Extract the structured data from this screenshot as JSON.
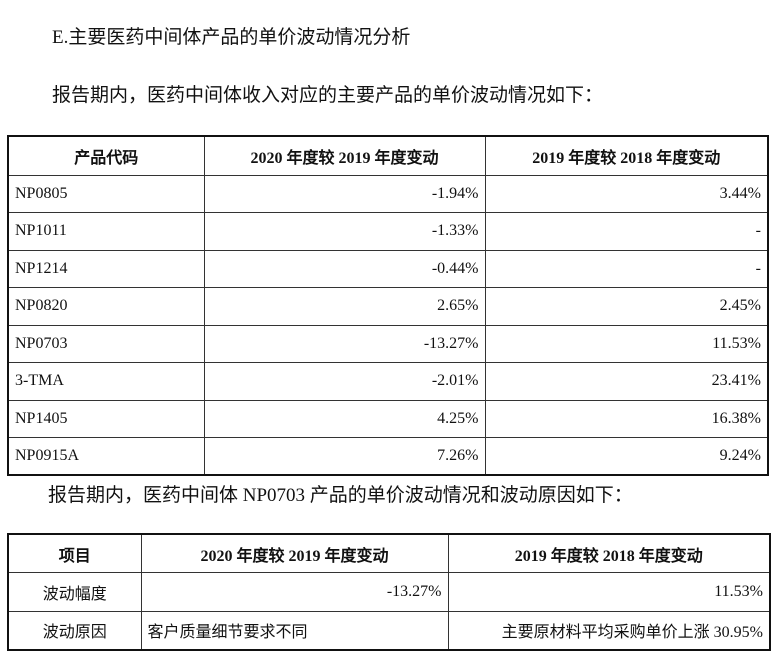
{
  "heading": "E.主要医药中间体产品的单价波动情况分析",
  "intro": "报告期内，医药中间体收入对应的主要产品的单价波动情况如下：",
  "table1": {
    "header": [
      "产品代码",
      "2020 年度较 2019 年度变动",
      "2019 年度较 2018 年度变动"
    ],
    "rows": [
      [
        "NP0805",
        "-1.94%",
        "3.44%"
      ],
      [
        "NP1011",
        "-1.33%",
        "-"
      ],
      [
        "NP1214",
        "-0.44%",
        "-"
      ],
      [
        "NP0820",
        "2.65%",
        "2.45%"
      ],
      [
        "NP0703",
        "-13.27%",
        "11.53%"
      ],
      [
        "3-TMA",
        "-2.01%",
        "23.41%"
      ],
      [
        "NP1405",
        "4.25%",
        "16.38%"
      ],
      [
        "NP0915A",
        "7.26%",
        "9.24%"
      ]
    ]
  },
  "intro2": "报告期内，医药中间体 NP0703 产品的单价波动情况和波动原因如下：",
  "table2": {
    "header": [
      "项目",
      "2020 年度较 2019 年度变动",
      "2019 年度较 2018 年度变动"
    ],
    "rows": [
      [
        "波动幅度",
        "-13.27%",
        "11.53%"
      ],
      [
        "波动原因",
        "客户质量细节要求不同",
        "主要原材料平均采购单价上涨 30.95%"
      ]
    ]
  }
}
